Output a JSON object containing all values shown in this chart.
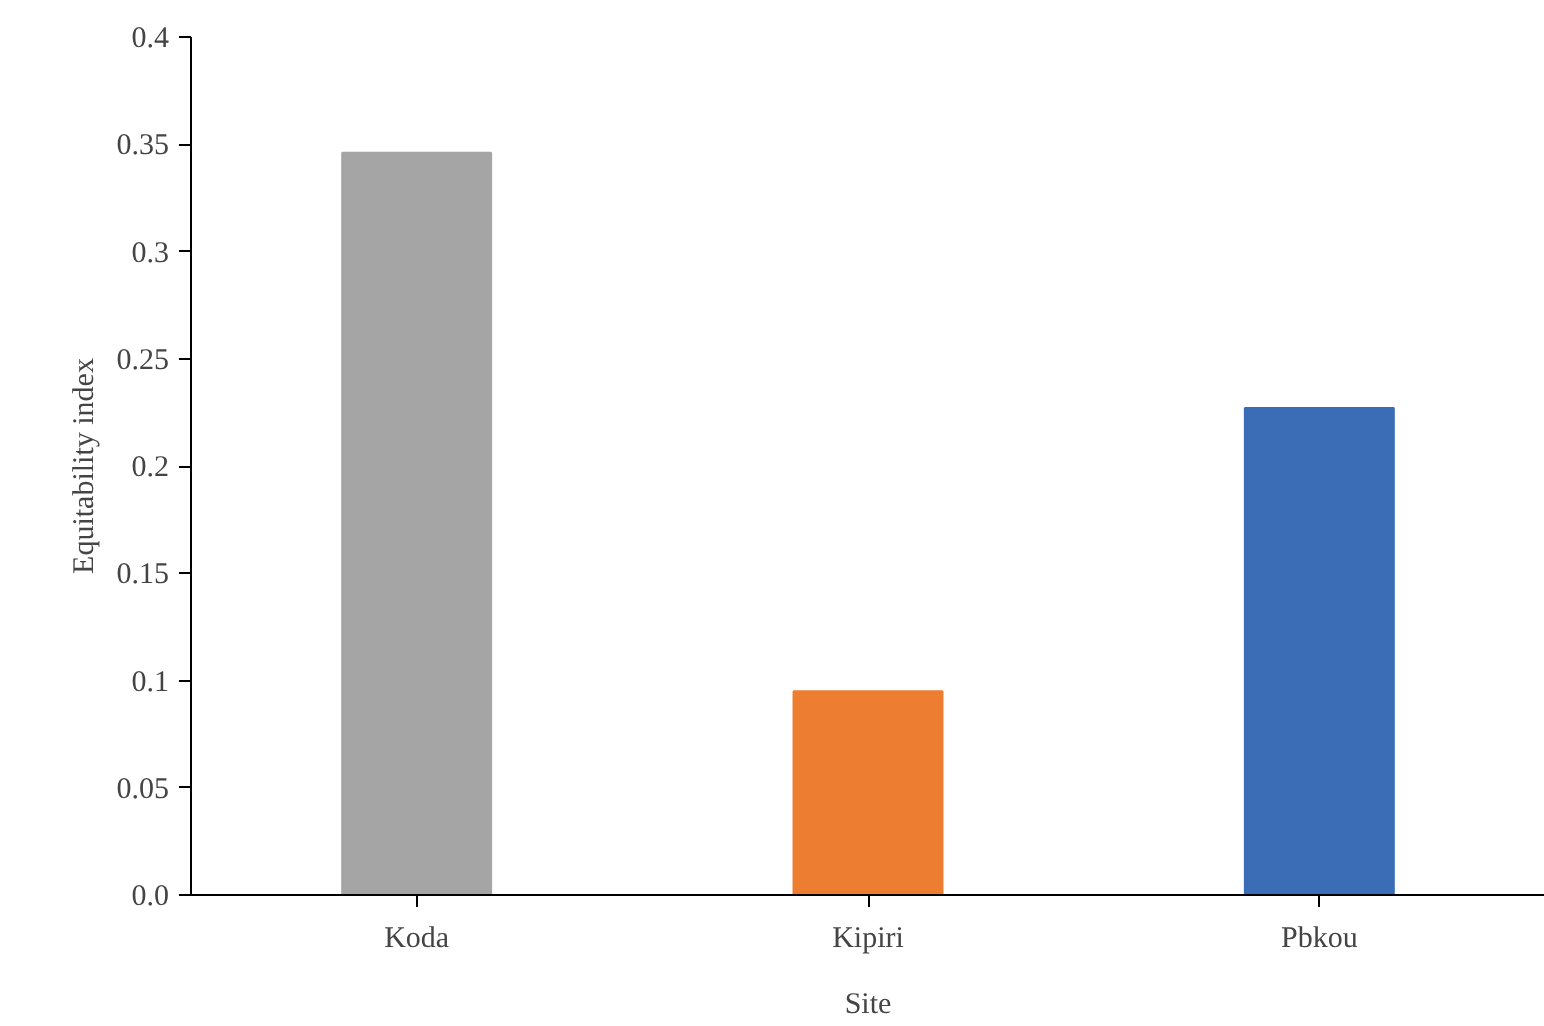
{
  "chart_data": {
    "type": "bar",
    "xlabel": "Site",
    "ylabel": "Equitability index",
    "categories": [
      "Koda",
      "Kipiri",
      "Pbkou"
    ],
    "values": [
      0.346,
      0.095,
      0.227
    ],
    "colors": [
      "#a5a5a5",
      "#ed7d31",
      "#3a6db5"
    ],
    "ylim": [
      0,
      0.4
    ],
    "yticks": [
      {
        "value": 0,
        "label": "0.0"
      },
      0.05,
      0.1,
      0.15,
      0.2,
      0.25,
      0.3,
      0.35,
      0.4
    ],
    "grid": false
  }
}
